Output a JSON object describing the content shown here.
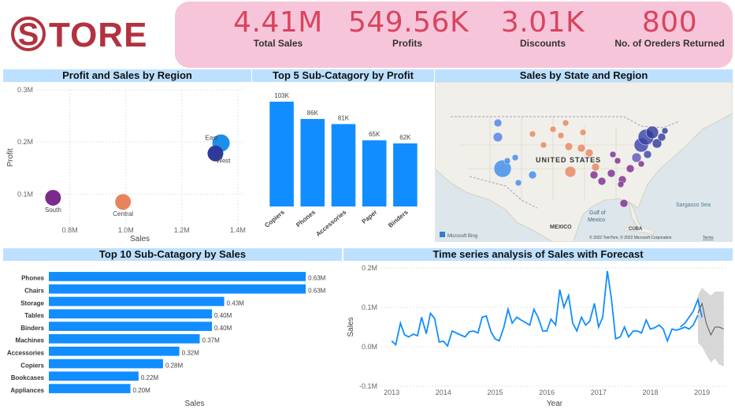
{
  "logo": {
    "text": "TORE",
    "letter": "S"
  },
  "kpis": [
    {
      "value": "4.41M",
      "label": "Total Sales"
    },
    {
      "value": "549.56K",
      "label": "Profits"
    },
    {
      "value": "3.01K",
      "label": "Discounts"
    },
    {
      "value": "800",
      "label": "No. of Oreders Returned"
    }
  ],
  "colors": {
    "accent": "#118dff",
    "kpi": "#d9445f",
    "panel_header": "#bde0ff",
    "kpi_band": "#f7c5d9",
    "forecast_band": "#d0d0d0"
  },
  "panels": {
    "scatter_title": "Profit and Sales by Region",
    "bar5_title": "Top 5 Sub-Catagory by Profit",
    "map_title": "Sales by State and Region",
    "bar10_title": "Top 10 Sub-Catagory by Sales",
    "ts_title": "Time series analysis of Sales with Forecast"
  },
  "map": {
    "labels": {
      "country1": "UNITED STATES",
      "country2": "MEXICO",
      "gulf1": "Gulf of",
      "gulf2": "Mexico",
      "sea": "Sargasso Sea",
      "cuba": "CUBA"
    },
    "attribution": "© 2022 TomTom, © 2022 Microsoft Corporation",
    "terms": "Terms",
    "brand": "Microsoft Bing"
  },
  "chart_data": [
    {
      "type": "scatter",
      "title": "Profit and Sales by Region",
      "xlabel": "Sales",
      "ylabel": "Profit",
      "xlim": [
        0.68,
        1.42
      ],
      "ylim": [
        0.04,
        0.3
      ],
      "x_ticks": [
        "0.8M",
        "1.0M",
        "1.2M",
        "1.4M"
      ],
      "x_tick_values": [
        0.8,
        1.0,
        1.2,
        1.4
      ],
      "y_ticks": [
        "0.1M",
        "0.2M",
        "0.3M"
      ],
      "y_tick_values": [
        0.1,
        0.2,
        0.3
      ],
      "grid": true,
      "points": [
        {
          "label": "South",
          "x": 0.74,
          "y": 0.093,
          "color": "#7a2a8c"
        },
        {
          "label": "Central",
          "x": 0.99,
          "y": 0.085,
          "color": "#e8845c"
        },
        {
          "label": "East",
          "x": 1.34,
          "y": 0.198,
          "color": "#1d8fe8"
        },
        {
          "label": "West",
          "x": 1.32,
          "y": 0.178,
          "color": "#2e3a9b"
        }
      ]
    },
    {
      "type": "bar",
      "title": "Top 5 Sub-Catagory by Profit",
      "categories": [
        "Copiers",
        "Phones",
        "Accessories",
        "Paper",
        "Binders"
      ],
      "values": [
        103,
        86,
        81,
        65,
        62
      ],
      "value_labels": [
        "103K",
        "86K",
        "81K",
        "65K",
        "62K"
      ],
      "ylim": [
        0,
        110
      ]
    },
    {
      "type": "bar",
      "orientation": "horizontal",
      "title": "Top 10 Sub-Catagory by Sales",
      "xlabel": "Sales",
      "categories": [
        "Phones",
        "Chairs",
        "Storage",
        "Tables",
        "Binders",
        "Machines",
        "Accessories",
        "Copiers",
        "Bookcases",
        "Appliances"
      ],
      "values": [
        0.63,
        0.63,
        0.43,
        0.4,
        0.4,
        0.37,
        0.32,
        0.28,
        0.22,
        0.2
      ],
      "value_labels": [
        "0.63M",
        "0.63M",
        "0.43M",
        "0.40M",
        "0.40M",
        "0.37M",
        "0.32M",
        "0.28M",
        "0.22M",
        "0.20M"
      ],
      "xlim": [
        0,
        0.68
      ]
    },
    {
      "type": "line",
      "title": "Time series analysis of Sales with Forecast",
      "xlabel": "Year",
      "ylabel": "Sales",
      "xlim": [
        2012.8,
        2019.5
      ],
      "ylim": [
        -0.1,
        0.2
      ],
      "x_ticks": [
        "2013",
        "2014",
        "2015",
        "2016",
        "2017",
        "2018",
        "2019"
      ],
      "x_tick_values": [
        2013,
        2014,
        2015,
        2016,
        2017,
        2018,
        2019
      ],
      "y_ticks": [
        "-0.1M",
        "0.0M",
        "0.1M",
        "0.2M"
      ],
      "y_tick_values": [
        -0.1,
        0.0,
        0.1,
        0.2
      ],
      "series": [
        {
          "x": [
            2013.0,
            2013.08,
            2013.17,
            2013.25,
            2013.33,
            2013.42,
            2013.5,
            2013.58,
            2013.67,
            2013.75,
            2013.83,
            2013.92,
            2014.0,
            2014.08,
            2014.17,
            2014.25,
            2014.33,
            2014.42,
            2014.5,
            2014.58,
            2014.67,
            2014.75,
            2014.83,
            2014.92,
            2015.0,
            2015.08,
            2015.17,
            2015.25,
            2015.33,
            2015.42,
            2015.5,
            2015.58,
            2015.67,
            2015.75,
            2015.83,
            2015.92,
            2016.0,
            2016.08,
            2016.17,
            2016.25,
            2016.33,
            2016.42,
            2016.5,
            2016.58,
            2016.67,
            2016.75,
            2016.83,
            2016.92,
            2017.0,
            2017.08,
            2017.17,
            2017.25,
            2017.33,
            2017.42,
            2017.5,
            2017.58,
            2017.67,
            2017.75,
            2017.83,
            2017.92,
            2018.0,
            2018.08,
            2018.17,
            2018.25,
            2018.33,
            2018.42,
            2018.5,
            2018.58,
            2018.67,
            2018.75,
            2018.83,
            2018.92
          ],
          "values": [
            0.015,
            0.005,
            0.06,
            0.03,
            0.025,
            0.032,
            0.028,
            0.075,
            0.033,
            0.085,
            0.072,
            0.012,
            0.014,
            0.002,
            0.04,
            0.035,
            0.03,
            0.025,
            0.038,
            0.04,
            0.035,
            0.075,
            0.078,
            0.038,
            0.02,
            0.015,
            0.05,
            0.095,
            0.06,
            0.075,
            0.068,
            0.062,
            0.055,
            0.095,
            0.075,
            0.04,
            0.04,
            0.07,
            0.055,
            0.145,
            0.1,
            0.13,
            0.06,
            0.04,
            0.075,
            0.055,
            0.065,
            0.11,
            0.05,
            0.075,
            0.192,
            0.12,
            0.02,
            0.025,
            0.05,
            0.025,
            0.04,
            0.04,
            0.035,
            0.068,
            0.045,
            0.048,
            0.055,
            0.045,
            0.015,
            0.045,
            0.042,
            0.045,
            0.05,
            0.045,
            0.055,
            0.08
          ]
        },
        {
          "name": "forecast",
          "x": [
            2018.92,
            2019.0,
            2019.08,
            2019.17,
            2019.25,
            2019.33,
            2019.42
          ],
          "values": [
            0.085,
            0.11,
            0.06,
            0.03,
            0.05,
            0.05,
            0.045
          ],
          "upper": [
            0.13,
            0.15,
            0.14,
            0.13,
            0.14,
            0.14,
            0.14
          ],
          "lower": [
            0.01,
            0.0,
            -0.02,
            -0.04,
            -0.03,
            -0.045,
            -0.05
          ]
        }
      ],
      "overlay": {
        "x": [
          2018.58,
          2018.67,
          2018.75,
          2018.83,
          2018.92,
          2019.0
        ],
        "values": [
          0.05,
          0.06,
          0.075,
          0.09,
          0.12,
          0.075
        ]
      }
    }
  ]
}
